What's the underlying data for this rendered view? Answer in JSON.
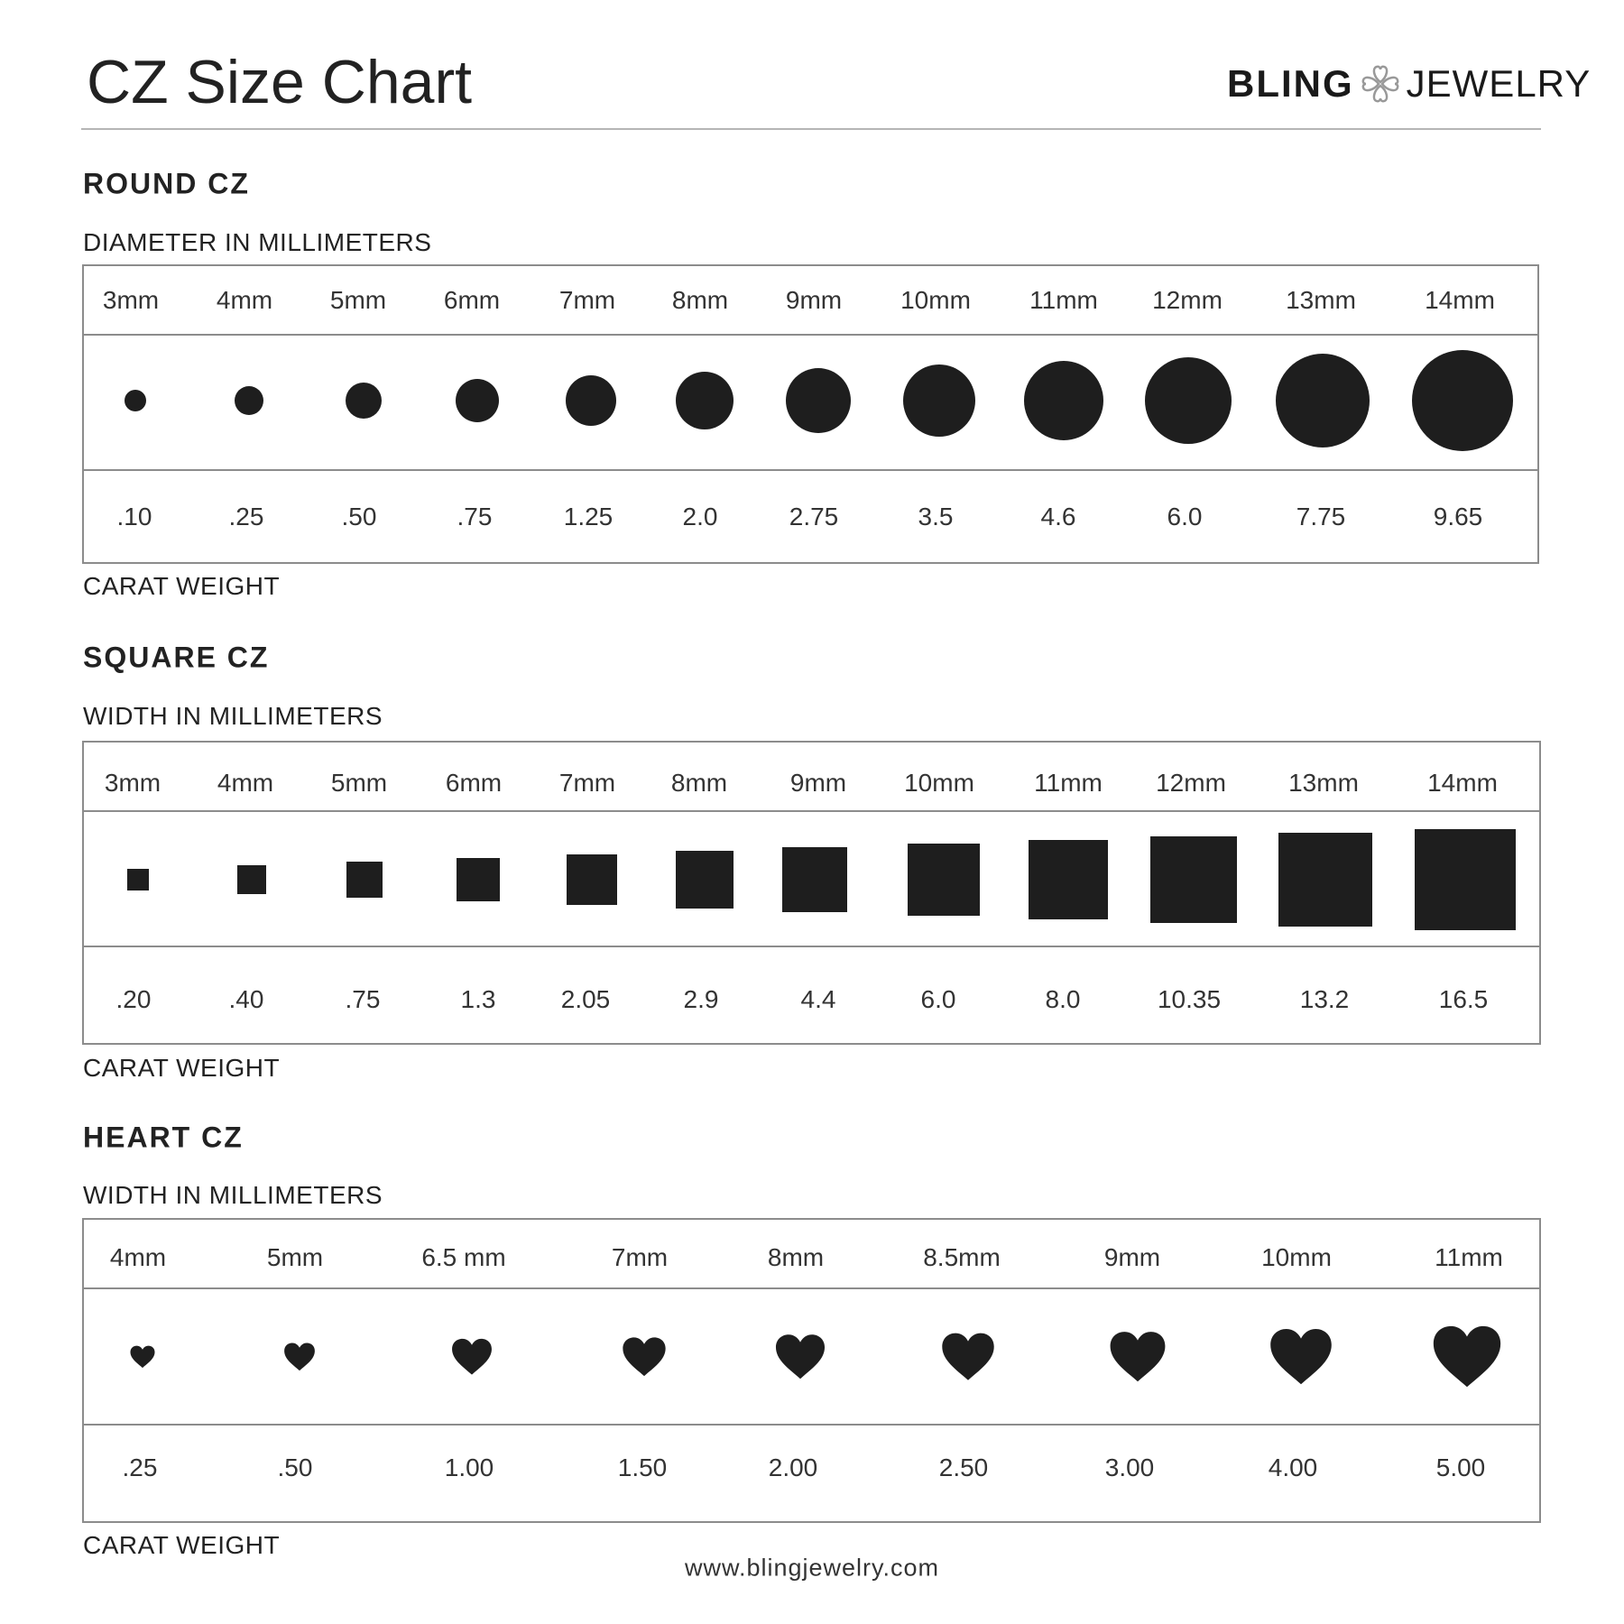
{
  "title": "CZ Size Chart",
  "logo": {
    "left": "BLING",
    "right": "JEWELRY",
    "icon": "clover-hearts-icon"
  },
  "url": "www.blingjewelry.com",
  "colors": {
    "shape": "#1e1e1e",
    "border": "#8c8c8c",
    "logo_icon": "#999999"
  },
  "sections": [
    {
      "id": "round",
      "title": "ROUND CZ",
      "measure_label": "DIAMETER IN MILLIMETERS",
      "weight_label": "CARAT WEIGHT",
      "shape": "circle",
      "sizes": [
        "3mm",
        "4mm",
        "5mm",
        "6mm",
        "7mm",
        "8mm",
        "9mm",
        "10mm",
        "11mm",
        "12mm",
        "13mm",
        "14mm"
      ],
      "mm": [
        3,
        4,
        5,
        6,
        7,
        8,
        9,
        10,
        11,
        12,
        13,
        14
      ],
      "weights": [
        ".10",
        ".25",
        ".50",
        ".75",
        "1.25",
        "2.0",
        "2.75",
        "3.5",
        "4.6",
        "6.0",
        "7.75",
        "9.65"
      ]
    },
    {
      "id": "square",
      "title": "SQUARE CZ",
      "measure_label": "WIDTH IN MILLIMETERS",
      "weight_label": "CARAT WEIGHT",
      "shape": "square",
      "sizes": [
        "3mm",
        "4mm",
        "5mm",
        "6mm",
        "7mm",
        "8mm",
        "9mm",
        "10mm",
        "11mm",
        "12mm",
        "13mm",
        "14mm"
      ],
      "mm": [
        3,
        4,
        5,
        6,
        7,
        8,
        9,
        10,
        11,
        12,
        13,
        14
      ],
      "weights": [
        ".20",
        ".40",
        ".75",
        "1.3",
        "2.05",
        "2.9",
        "4.4",
        "6.0",
        "8.0",
        "10.35",
        "13.2",
        "16.5"
      ]
    },
    {
      "id": "heart",
      "title": "HEART CZ",
      "measure_label": "WIDTH IN MILLIMETERS",
      "weight_label": "CARAT WEIGHT",
      "shape": "heart",
      "sizes": [
        "4mm",
        "5mm",
        "6.5 mm",
        "7mm",
        "8mm",
        "8.5mm",
        "9mm",
        "10mm",
        "11mm"
      ],
      "mm": [
        4,
        5,
        6.5,
        7,
        8,
        8.5,
        9,
        10,
        11
      ],
      "weights": [
        ".25",
        ".50",
        "1.00",
        "1.50",
        "2.00",
        "2.50",
        "3.00",
        "4.00",
        "5.00"
      ]
    }
  ]
}
